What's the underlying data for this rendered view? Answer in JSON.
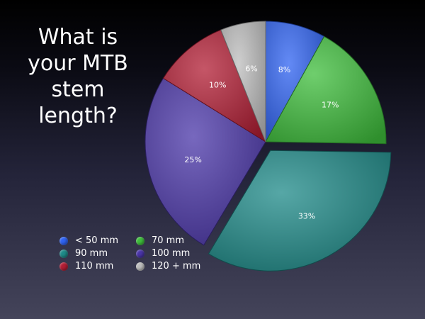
{
  "title_lines": [
    "What is",
    "your MTB",
    "stem",
    "length?"
  ],
  "chart_data": {
    "type": "pie",
    "title": "What is your MTB stem length?",
    "slices": [
      {
        "name": "< 50 mm",
        "value": 8,
        "label": "8%",
        "color": "#2f63f2",
        "exploded": false
      },
      {
        "name": "70 mm",
        "value": 17,
        "label": "17%",
        "color": "#3fbe3c",
        "exploded": false
      },
      {
        "name": "90 mm",
        "value": 33,
        "label": "33%",
        "color": "#1e8a88",
        "exploded": true
      },
      {
        "name": "100 mm",
        "value": 25,
        "label": "25%",
        "color": "#4a35a8",
        "exploded": false
      },
      {
        "name": "110 mm",
        "value": 10,
        "label": "10%",
        "color": "#b21d34",
        "exploded": false
      },
      {
        "name": "120 + mm",
        "value": 6,
        "label": "6%",
        "color": "#bdbdbd",
        "exploded": false
      }
    ],
    "legend_placement": "bottom-left"
  },
  "legend_order": [
    0,
    1,
    2,
    3,
    4,
    5
  ]
}
